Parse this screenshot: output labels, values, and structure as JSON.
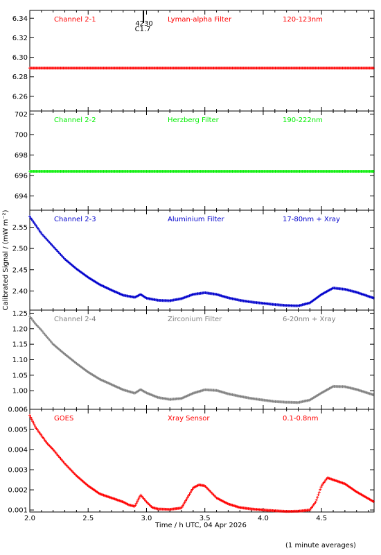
{
  "chart_data": [
    {
      "type": "line",
      "panel": "Channel 2-1",
      "labels": {
        "channel": "Channel 2-1",
        "filter": "Lyman-alpha Filter",
        "band": "120-123nm"
      },
      "color": "#ff0000",
      "ylim": [
        6.245,
        6.348
      ],
      "yticks": [
        6.26,
        6.28,
        6.3,
        6.32,
        6.34
      ],
      "ytick_labels": [
        "6.26",
        "6.28",
        "6.30",
        "6.32",
        "6.34"
      ],
      "xlim": [
        2.0,
        4.95
      ],
      "event_marker": {
        "x": 2.95,
        "text1": "4230",
        "text2": "C1.7"
      },
      "series": [
        {
          "x": [
            2.0,
            2.5,
            3.0,
            3.5,
            4.0,
            4.5,
            4.95
          ],
          "y": [
            6.289,
            6.289,
            6.289,
            6.289,
            6.289,
            6.289,
            6.289
          ]
        }
      ]
    },
    {
      "type": "line",
      "panel": "Channel 2-2",
      "labels": {
        "channel": "Channel 2-2",
        "filter": "Herzberg Filter",
        "band": "190-222nm"
      },
      "color": "#00ee00",
      "ylim": [
        692.6,
        702.3
      ],
      "yticks": [
        694,
        696,
        698,
        700,
        702
      ],
      "ytick_labels": [
        "694",
        "696",
        "698",
        "700",
        "702"
      ],
      "xlim": [
        2.0,
        4.95
      ],
      "series": [
        {
          "x": [
            2.0,
            2.5,
            3.0,
            3.5,
            4.0,
            4.5,
            4.95
          ],
          "y": [
            696.4,
            696.4,
            696.4,
            696.4,
            696.4,
            696.4,
            696.4
          ]
        }
      ]
    },
    {
      "type": "line",
      "panel": "Channel 2-3",
      "labels": {
        "channel": "Channel 2-3",
        "filter": "Aluminium Filter",
        "band": "17-80nm + Xray"
      },
      "color": "#0000cc",
      "ylim": [
        2.355,
        2.59
      ],
      "yticks": [
        2.4,
        2.45,
        2.5,
        2.55
      ],
      "ytick_labels": [
        "2.40",
        "2.45",
        "2.50",
        "2.55"
      ],
      "xlim": [
        2.0,
        4.95
      ],
      "series": [
        {
          "x": [
            2.0,
            2.05,
            2.1,
            2.15,
            2.2,
            2.3,
            2.4,
            2.5,
            2.6,
            2.7,
            2.8,
            2.9,
            2.95,
            3.0,
            3.1,
            3.2,
            3.3,
            3.4,
            3.5,
            3.6,
            3.7,
            3.8,
            3.9,
            4.0,
            4.1,
            4.2,
            4.3,
            4.4,
            4.5,
            4.6,
            4.7,
            4.8,
            4.95
          ],
          "y": [
            2.575,
            2.555,
            2.535,
            2.52,
            2.505,
            2.475,
            2.452,
            2.432,
            2.415,
            2.402,
            2.39,
            2.385,
            2.392,
            2.383,
            2.378,
            2.377,
            2.382,
            2.392,
            2.396,
            2.392,
            2.384,
            2.378,
            2.374,
            2.371,
            2.368,
            2.366,
            2.365,
            2.372,
            2.392,
            2.407,
            2.404,
            2.397,
            2.383
          ]
        }
      ]
    },
    {
      "type": "line",
      "panel": "Channel 2-4",
      "labels": {
        "channel": "Channel 2-4",
        "filter": "Zirconium Filter",
        "band": "6-20nm + Xray"
      },
      "color": "#808080",
      "ylim": [
        0.94,
        1.26
      ],
      "yticks": [
        1.0,
        1.05,
        1.1,
        1.15,
        1.2,
        1.25
      ],
      "ytick_labels": [
        "1.00",
        "1.05",
        "1.10",
        "1.15",
        "1.20",
        "1.25"
      ],
      "xlim": [
        2.0,
        4.95
      ],
      "series": [
        {
          "x": [
            2.0,
            2.05,
            2.1,
            2.15,
            2.2,
            2.3,
            2.4,
            2.5,
            2.6,
            2.7,
            2.8,
            2.9,
            2.95,
            3.0,
            3.1,
            3.2,
            3.3,
            3.4,
            3.5,
            3.6,
            3.7,
            3.8,
            3.9,
            4.0,
            4.1,
            4.2,
            4.3,
            4.4,
            4.5,
            4.6,
            4.7,
            4.8,
            4.95
          ],
          "y": [
            1.24,
            1.215,
            1.195,
            1.172,
            1.15,
            1.118,
            1.088,
            1.06,
            1.037,
            1.02,
            1.003,
            0.992,
            1.004,
            0.993,
            0.978,
            0.972,
            0.975,
            0.992,
            1.003,
            1.001,
            0.99,
            0.982,
            0.975,
            0.97,
            0.965,
            0.963,
            0.962,
            0.97,
            0.993,
            1.014,
            1.013,
            1.004,
            0.986
          ]
        }
      ]
    },
    {
      "type": "line",
      "panel": "GOES",
      "labels": {
        "channel": "GOES",
        "filter": "Xray Sensor",
        "band": "0.1-0.8nm"
      },
      "color": "#ff0000",
      "ylim": [
        0.0009,
        0.006
      ],
      "yticks": [
        0.001,
        0.002,
        0.003,
        0.004,
        0.005,
        0.006
      ],
      "ytick_labels": [
        "0.001",
        "0.002",
        "0.003",
        "0.004",
        "0.005",
        "0.006"
      ],
      "xlim": [
        2.0,
        4.95
      ],
      "xticks": [
        2.0,
        2.5,
        3.0,
        3.5,
        4.0,
        4.5
      ],
      "xtick_labels": [
        "2.0",
        "2.5",
        "3.0",
        "3.5",
        "4.0",
        "4.5"
      ],
      "series": [
        {
          "x": [
            2.0,
            2.05,
            2.1,
            2.15,
            2.2,
            2.3,
            2.4,
            2.5,
            2.6,
            2.7,
            2.8,
            2.85,
            2.9,
            2.95,
            3.0,
            3.05,
            3.1,
            3.2,
            3.3,
            3.35,
            3.4,
            3.45,
            3.5,
            3.55,
            3.6,
            3.7,
            3.8,
            3.9,
            4.0,
            4.1,
            4.2,
            4.3,
            4.4,
            4.45,
            4.5,
            4.55,
            4.6,
            4.7,
            4.8,
            4.95
          ],
          "y": [
            0.0057,
            0.0051,
            0.0047,
            0.0043,
            0.004,
            0.0033,
            0.0027,
            0.0022,
            0.0018,
            0.0016,
            0.0014,
            0.00125,
            0.00118,
            0.00175,
            0.0014,
            0.00112,
            0.00105,
            0.00103,
            0.0011,
            0.0016,
            0.0021,
            0.00225,
            0.0022,
            0.0019,
            0.0016,
            0.0013,
            0.00112,
            0.00105,
            0.001,
            0.00096,
            0.00093,
            0.00094,
            0.001,
            0.0014,
            0.0022,
            0.0026,
            0.0025,
            0.0023,
            0.0019,
            0.0014
          ]
        }
      ]
    }
  ],
  "axes": {
    "xlabel": "Time / h UTC, 04 Apr 2026",
    "ylabel": "Calibrated Signal / (mW m⁻²)"
  },
  "footer": "(1 minute averages)"
}
